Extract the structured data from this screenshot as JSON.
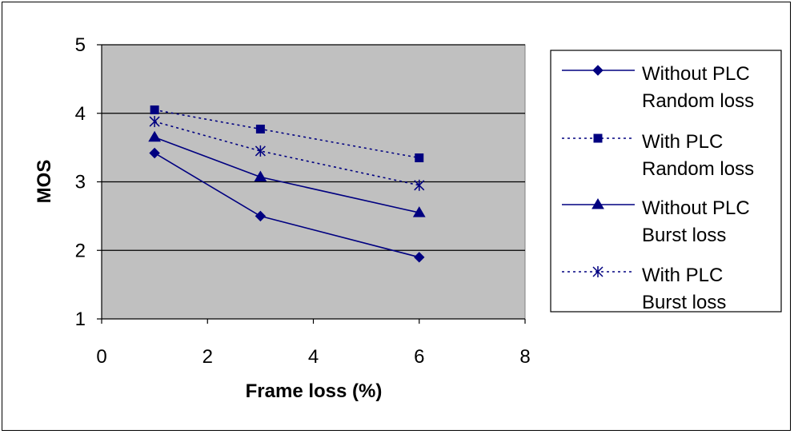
{
  "chart_data": {
    "type": "line",
    "xlabel": "Frame loss (%)",
    "ylabel": "MOS",
    "xlim": [
      0,
      8
    ],
    "ylim": [
      1,
      5
    ],
    "xticks": [
      "0",
      "2",
      "4",
      "6",
      "8"
    ],
    "yticks": [
      "1",
      "2",
      "3",
      "4",
      "5"
    ],
    "grid": "horizontal",
    "legend_position": "right",
    "plot_background": "#C0C0C0",
    "line_color": "#000080",
    "series": [
      {
        "name_line1": "Without PLC",
        "name_line2": "Random loss",
        "marker": "diamond",
        "dash": "solid",
        "x": [
          1,
          3,
          6
        ],
        "y": [
          3.42,
          2.5,
          1.9
        ]
      },
      {
        "name_line1": "With PLC",
        "name_line2": "Random loss",
        "marker": "square",
        "dash": "dotted",
        "x": [
          1,
          3,
          6
        ],
        "y": [
          4.05,
          3.77,
          3.35
        ]
      },
      {
        "name_line1": "Without PLC",
        "name_line2": "Burst loss",
        "marker": "triangle",
        "dash": "solid",
        "x": [
          1,
          3,
          6
        ],
        "y": [
          3.65,
          3.07,
          2.55
        ]
      },
      {
        "name_line1": "With PLC",
        "name_line2": "Burst loss",
        "marker": "star",
        "dash": "dotted",
        "x": [
          1,
          3,
          6
        ],
        "y": [
          3.88,
          3.45,
          2.95
        ]
      }
    ]
  }
}
